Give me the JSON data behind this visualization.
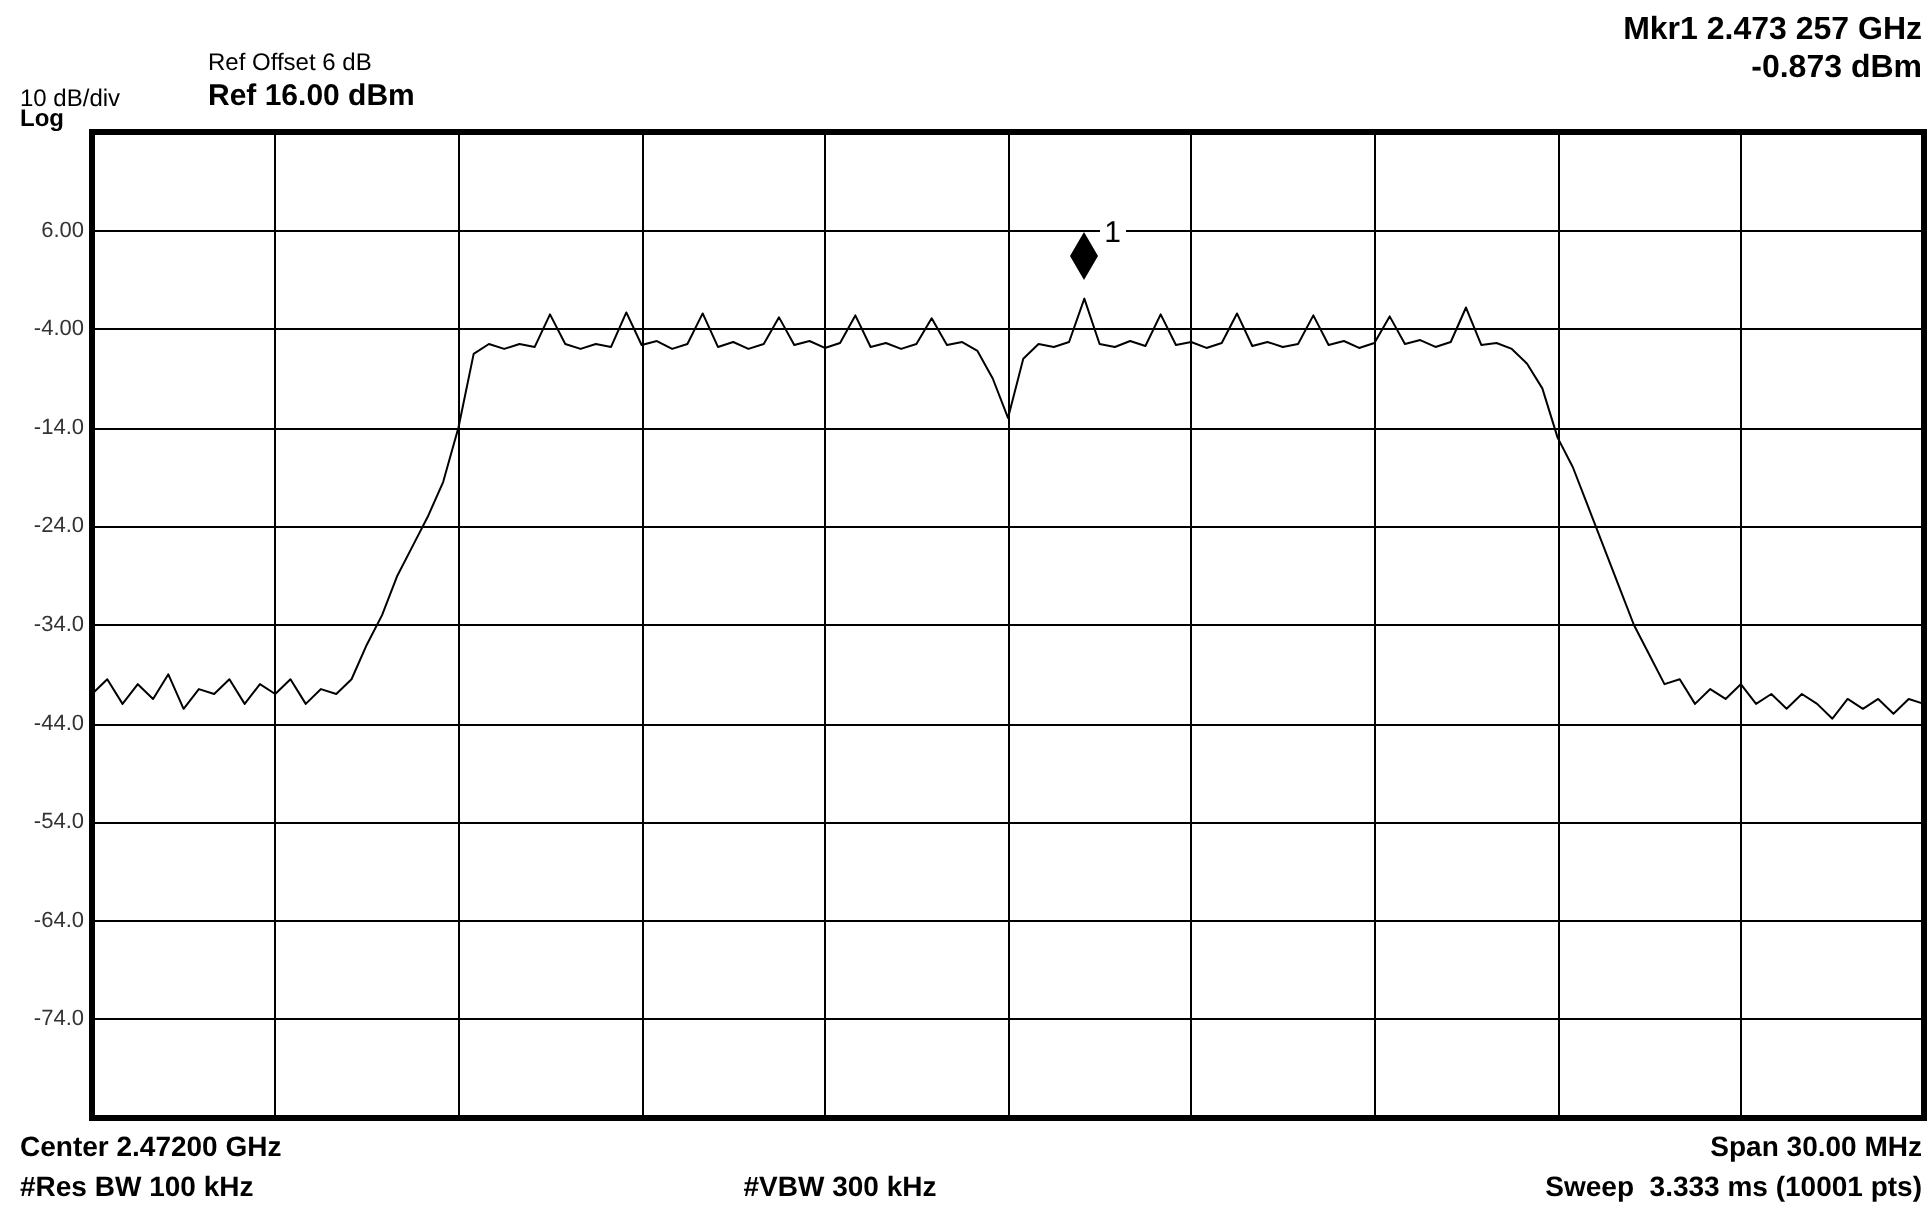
{
  "chart_data": {
    "type": "line",
    "categories": [
      null,
      null,
      null,
      null,
      null,
      null,
      null,
      null,
      null,
      null,
      null,
      null,
      null,
      null,
      null,
      null,
      null,
      null,
      null,
      null,
      null,
      null,
      null,
      null,
      null,
      null,
      null,
      null,
      null,
      null,
      null,
      null,
      null,
      null,
      null,
      null,
      null,
      null,
      null,
      null,
      null,
      null,
      null,
      null,
      null,
      null,
      null,
      null,
      null,
      null,
      null,
      null,
      null,
      null,
      null,
      null,
      null,
      null,
      null,
      null,
      null,
      null,
      null,
      null,
      null,
      null,
      null,
      null,
      null,
      null,
      null,
      null,
      null,
      null,
      null,
      null,
      null,
      null,
      null,
      null,
      null,
      null,
      null,
      null,
      null,
      null,
      null,
      null,
      null,
      null,
      null,
      null,
      null,
      null,
      null,
      null,
      null,
      null,
      null,
      null,
      null,
      null,
      null,
      null,
      null,
      null,
      null,
      null,
      null,
      null,
      null,
      null,
      null,
      null,
      null,
      null,
      null,
      null,
      null,
      null,
      null
    ],
    "series": [
      {
        "color": "#000000",
        "values": [
          -41,
          -39.5,
          -42,
          -40,
          -41.5,
          -39,
          -42.5,
          -40.5,
          -41,
          -39.5,
          -42,
          -40,
          -41,
          -39.5,
          -42,
          -40.5,
          -41,
          -39.5,
          -36,
          -33,
          -29,
          -26,
          -23,
          -19.5,
          -14,
          -6.5,
          -5.5,
          -6,
          -5.5,
          -5.8,
          -2.5,
          -5.5,
          -6,
          -5.5,
          -5.8,
          -2.3,
          -5.6,
          -5.2,
          -6,
          -5.5,
          -2.4,
          -5.8,
          -5.3,
          -6,
          -5.5,
          -2.8,
          -5.6,
          -5.2,
          -5.9,
          -5.4,
          -2.6,
          -5.8,
          -5.4,
          -6,
          -5.5,
          -2.9,
          -5.6,
          -5.3,
          -6.2,
          -9,
          -13,
          -7,
          -5.5,
          -5.8,
          -5.3,
          -0.9,
          -5.5,
          -5.8,
          -5.2,
          -5.7,
          -2.5,
          -5.6,
          -5.3,
          -5.9,
          -5.4,
          -2.4,
          -5.7,
          -5.3,
          -5.8,
          -5.5,
          -2.6,
          -5.6,
          -5.2,
          -5.9,
          -5.4,
          -2.7,
          -5.5,
          -5.1,
          -5.8,
          -5.3,
          -1.8,
          -5.6,
          -5.4,
          -6,
          -7.5,
          -10,
          -15,
          -18,
          -22,
          -26,
          -30,
          -34,
          -37,
          -40,
          -39.5,
          -42,
          -40.5,
          -41.5,
          -40,
          -42,
          -41,
          -42.5,
          -41,
          -42,
          -43.5,
          -41.5,
          -42.5,
          -41.5,
          -43,
          -41.5,
          -42
        ]
      }
    ],
    "ylim": [
      -84,
      16
    ],
    "yticks": [
      {
        "value": 16,
        "label": null
      },
      {
        "value": 6,
        "label": "6.00"
      },
      {
        "value": -4,
        "label": "-4.00"
      },
      {
        "value": -14,
        "label": "-14.0"
      },
      {
        "value": -24,
        "label": "-24.0"
      },
      {
        "value": -34,
        "label": "-34.0"
      },
      {
        "value": -44,
        "label": "-44.0"
      },
      {
        "value": -54,
        "label": "-54.0"
      },
      {
        "value": -64,
        "label": "-64.0"
      },
      {
        "value": -74,
        "label": "-74.0"
      },
      {
        "value": -84,
        "label": null
      }
    ],
    "grid": true,
    "tick_labels": "y",
    "annotations": [
      "Ref Offset 6 dB",
      "10 dB/div",
      "Ref 16.00 dBm",
      "Log",
      "Mkr1 2.473 257 GHz",
      "-0.873 dBm",
      "Center 2.47200 GHz",
      "#Res BW 100 kHz",
      "#VBW 300 kHz",
      "Span 30.00 MHz",
      "Sweep  3.333 ms (10001 pts)",
      "1"
    ]
  }
}
